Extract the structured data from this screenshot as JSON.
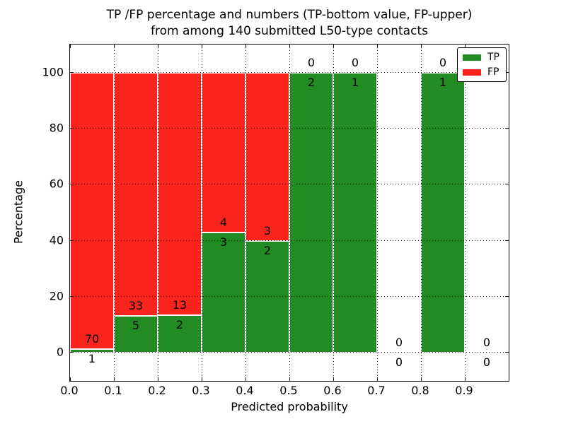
{
  "figure": {
    "background": "#ffffff",
    "title_line1": "TP /FP percentage and numbers (TP-bottom value, FP-upper)",
    "title_line2": "from among 140 submitted L50-type contacts"
  },
  "chart_data": {
    "type": "bar",
    "stacked": true,
    "title": "TP /FP percentage and numbers (TP-bottom value, FP-upper) from among 140 submitted L50-type contacts",
    "xlabel": "Predicted probability",
    "ylabel": "Percentage",
    "xlim": [
      0.0,
      1.0
    ],
    "ylim": [
      -10,
      110
    ],
    "bin_width": 0.1,
    "grid": "dotted black, both axes, drawn over bars",
    "legend_position": "upper right",
    "total_submitted_contacts": 140,
    "contact_type": "L50",
    "xticks": [
      "0.0",
      "0.1",
      "0.2",
      "0.3",
      "0.4",
      "0.5",
      "0.6",
      "0.7",
      "0.8",
      "0.9"
    ],
    "ytick_values": [
      0,
      20,
      40,
      60,
      80,
      100
    ],
    "yticks": [
      "0",
      "20",
      "40",
      "60",
      "80",
      "100"
    ],
    "series": [
      {
        "name": "TP",
        "color": "#228b22",
        "counts": [
          1,
          5,
          2,
          3,
          2,
          2,
          1,
          0,
          1,
          0
        ]
      },
      {
        "name": "FP",
        "color": "#fb241c",
        "counts": [
          70,
          33,
          13,
          4,
          3,
          0,
          0,
          0,
          0,
          0
        ]
      }
    ],
    "bins": [
      {
        "range": [
          0.0,
          0.1
        ],
        "tp": 1,
        "fp": 70,
        "tp_pct": 1.41,
        "fp_pct": 98.59
      },
      {
        "range": [
          0.1,
          0.2
        ],
        "tp": 5,
        "fp": 33,
        "tp_pct": 13.16,
        "fp_pct": 86.84
      },
      {
        "range": [
          0.2,
          0.3
        ],
        "tp": 2,
        "fp": 13,
        "tp_pct": 13.33,
        "fp_pct": 86.67
      },
      {
        "range": [
          0.3,
          0.4
        ],
        "tp": 3,
        "fp": 4,
        "tp_pct": 42.86,
        "fp_pct": 57.14
      },
      {
        "range": [
          0.4,
          0.5
        ],
        "tp": 2,
        "fp": 3,
        "tp_pct": 40.0,
        "fp_pct": 60.0
      },
      {
        "range": [
          0.5,
          0.6
        ],
        "tp": 2,
        "fp": 0,
        "tp_pct": 100.0,
        "fp_pct": 0.0
      },
      {
        "range": [
          0.6,
          0.7
        ],
        "tp": 1,
        "fp": 0,
        "tp_pct": 100.0,
        "fp_pct": 0.0
      },
      {
        "range": [
          0.7,
          0.8
        ],
        "tp": 0,
        "fp": 0,
        "tp_pct": 0.0,
        "fp_pct": 0.0
      },
      {
        "range": [
          0.8,
          0.9
        ],
        "tp": 1,
        "fp": 0,
        "tp_pct": 100.0,
        "fp_pct": 0.0
      },
      {
        "range": [
          0.9,
          1.0
        ],
        "tp": 0,
        "fp": 0,
        "tp_pct": 0.0,
        "fp_pct": 0.0
      }
    ],
    "colors": {
      "tp": "#228b22",
      "fp": "#fb241c",
      "grid": "#000000",
      "bar_edge": "#ffffff",
      "text": "#000000"
    },
    "legend": {
      "entries": [
        {
          "label": "TP",
          "color": "#228b22"
        },
        {
          "label": "FP",
          "color": "#fb241c"
        }
      ]
    }
  }
}
